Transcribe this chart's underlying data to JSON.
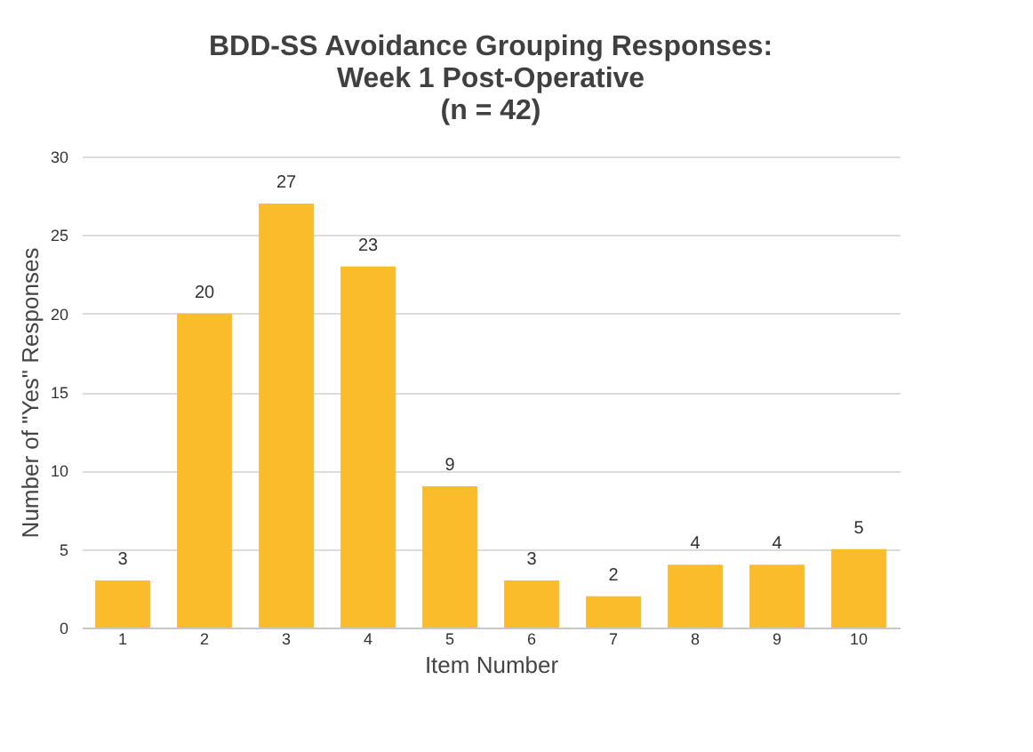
{
  "chart_data": {
    "type": "bar",
    "title": "BDD-SS Avoidance Grouping Responses:\nWeek 1 Post-Operative\n(n = 42)",
    "xlabel": "Item Number",
    "ylabel": "Number of \"Yes\" Responses",
    "categories": [
      "1",
      "2",
      "3",
      "4",
      "5",
      "6",
      "7",
      "8",
      "9",
      "10"
    ],
    "values": [
      3,
      20,
      27,
      23,
      9,
      3,
      2,
      4,
      4,
      5
    ],
    "color": "#fbbc2c",
    "ylim": [
      0,
      30
    ],
    "yticks": [
      0,
      5,
      10,
      15,
      20,
      25,
      30
    ],
    "grid": "y",
    "data_labels": true
  }
}
